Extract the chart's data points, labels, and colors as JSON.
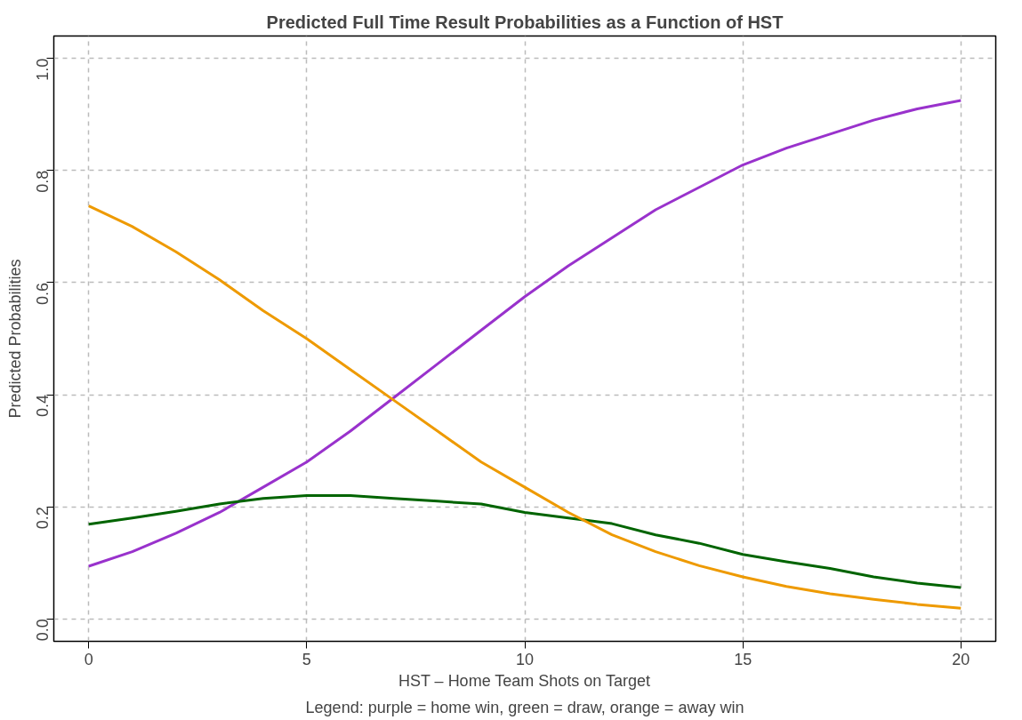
{
  "chart_data": {
    "type": "line",
    "title": "Predicted Full Time Result Probabilities as a Function of HST",
    "xlabel": "HST – Home Team Shots on Target",
    "ylabel": "Predicted Probabilities",
    "annotations": [
      "Legend: purple = home win, green = draw, orange = away win"
    ],
    "x": [
      0,
      1,
      2,
      3,
      4,
      5,
      6,
      7,
      8,
      9,
      10,
      11,
      12,
      13,
      14,
      15,
      16,
      17,
      18,
      19,
      20
    ],
    "series": [
      {
        "color": "#9932cc",
        "values": [
          0.094,
          0.12,
          0.153,
          0.19,
          0.235,
          0.28,
          0.335,
          0.395,
          0.455,
          0.515,
          0.575,
          0.63,
          0.68,
          0.73,
          0.77,
          0.81,
          0.84,
          0.865,
          0.89,
          0.91,
          0.925
        ]
      },
      {
        "color": "#006400",
        "values": [
          0.169,
          0.18,
          0.192,
          0.205,
          0.215,
          0.22,
          0.22,
          0.215,
          0.21,
          0.205,
          0.19,
          0.18,
          0.17,
          0.15,
          0.135,
          0.115,
          0.102,
          0.09,
          0.075,
          0.064,
          0.056
        ]
      },
      {
        "color": "#ee9a00",
        "values": [
          0.737,
          0.7,
          0.655,
          0.605,
          0.55,
          0.5,
          0.445,
          0.39,
          0.335,
          0.28,
          0.235,
          0.19,
          0.15,
          0.12,
          0.095,
          0.075,
          0.058,
          0.045,
          0.035,
          0.026,
          0.019
        ]
      }
    ],
    "xlim": [
      -0.8,
      20.8
    ],
    "ylim": [
      -0.04,
      1.04
    ],
    "xticks": [
      0,
      5,
      10,
      15,
      20
    ],
    "yticks": [
      {
        "value": 0,
        "label": "0.0"
      },
      {
        "value": 0.2,
        "label": "0.2"
      },
      {
        "value": 0.4,
        "label": "0.4"
      },
      {
        "value": 0.6,
        "label": "0.6"
      },
      {
        "value": 0.8,
        "label": "0.8"
      },
      {
        "value": 1,
        "label": "1.0"
      }
    ],
    "grid": true,
    "line_style": "solid",
    "marker": "none"
  }
}
